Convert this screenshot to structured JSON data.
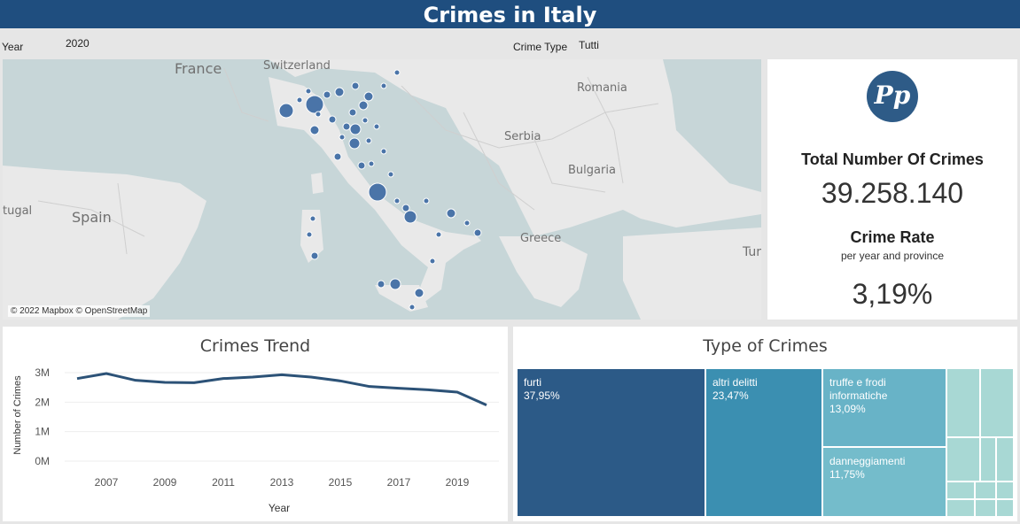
{
  "header": {
    "title": "Crimes in Italy"
  },
  "filters": {
    "year_label": "Year",
    "year_value": "2020",
    "type_label": "Crime Type",
    "type_value": "Tutti"
  },
  "map": {
    "countries": [
      "France",
      "Switzerland",
      "Romania",
      "Serbia",
      "Bulgaria",
      "Spain",
      "Greece",
      "tugal",
      "Tur"
    ],
    "attribution": "© 2022 Mapbox © OpenStreetMap",
    "marker_color": "#4a74a8"
  },
  "kpi": {
    "logo_text": "Pp",
    "total_title": "Total Number  Of Crimes",
    "total_value": "39.258.140",
    "rate_title": "Crime Rate",
    "rate_subtitle": "per year and province",
    "rate_value": "3,19%"
  },
  "trend": {
    "title": "Crimes Trend"
  },
  "types": {
    "title": "Type of Crimes",
    "tiles": [
      {
        "name": "furti",
        "pct": "37,95%",
        "color": "#2c5a87"
      },
      {
        "name": "altri delitti",
        "pct": "23,47%",
        "color": "#3b8fb1"
      },
      {
        "name": "truffe e frodi informatiche",
        "pct": "13,09%",
        "color": "#68b3c7"
      },
      {
        "name": "danneggiamenti",
        "pct": "11,75%",
        "color": "#74bccb"
      }
    ],
    "small_tile_color": "#a8d8d4"
  },
  "chart_data": {
    "type": "line",
    "title": "Crimes Trend",
    "xlabel": "Year",
    "ylabel": "Number of Crimes",
    "x": [
      2006,
      2007,
      2008,
      2009,
      2010,
      2011,
      2012,
      2013,
      2014,
      2015,
      2016,
      2017,
      2018,
      2019,
      2020
    ],
    "values": [
      2800000,
      2970000,
      2740000,
      2670000,
      2660000,
      2800000,
      2850000,
      2930000,
      2850000,
      2720000,
      2530000,
      2470000,
      2420000,
      2340000,
      1900000
    ],
    "xticks": [
      "2007",
      "2009",
      "2011",
      "2013",
      "2015",
      "2017",
      "2019"
    ],
    "yticks": [
      "0M",
      "1M",
      "2M",
      "3M"
    ],
    "ylim": [
      0,
      3000000
    ],
    "grid": true,
    "line_color": "#2c5277"
  }
}
